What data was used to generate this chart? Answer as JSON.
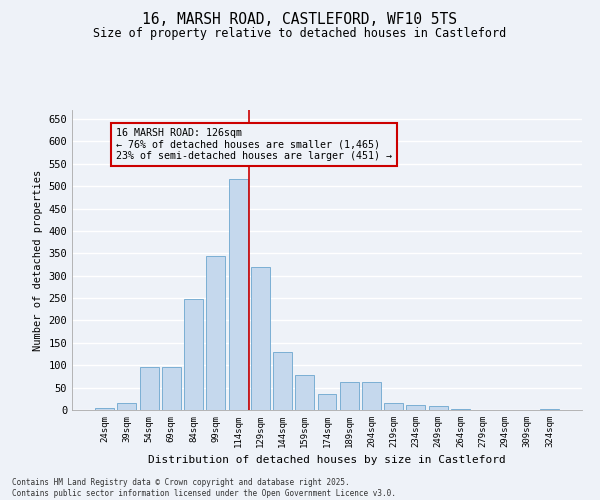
{
  "title_line1": "16, MARSH ROAD, CASTLEFORD, WF10 5TS",
  "title_line2": "Size of property relative to detached houses in Castleford",
  "xlabel": "Distribution of detached houses by size in Castleford",
  "ylabel": "Number of detached properties",
  "categories": [
    "24sqm",
    "39sqm",
    "54sqm",
    "69sqm",
    "84sqm",
    "99sqm",
    "114sqm",
    "129sqm",
    "144sqm",
    "159sqm",
    "174sqm",
    "189sqm",
    "204sqm",
    "219sqm",
    "234sqm",
    "249sqm",
    "264sqm",
    "279sqm",
    "294sqm",
    "309sqm",
    "324sqm"
  ],
  "values": [
    5,
    15,
    97,
    97,
    248,
    345,
    515,
    320,
    130,
    78,
    35,
    63,
    63,
    15,
    12,
    10,
    2,
    1,
    0,
    1,
    2
  ],
  "bar_color": "#c5d8ed",
  "bar_edge_color": "#7bafd4",
  "vline_color": "#cc0000",
  "vline_position": 6.5,
  "property_label": "16 MARSH ROAD: 126sqm",
  "annotation_line1": "← 76% of detached houses are smaller (1,465)",
  "annotation_line2": "23% of semi-detached houses are larger (451) →",
  "annotation_box_color": "#cc0000",
  "annotation_box_bg": "#eef2f8",
  "ylim": [
    0,
    670
  ],
  "yticks": [
    0,
    50,
    100,
    150,
    200,
    250,
    300,
    350,
    400,
    450,
    500,
    550,
    600,
    650
  ],
  "background_color": "#eef2f8",
  "grid_color": "#ffffff",
  "footer_line1": "Contains HM Land Registry data © Crown copyright and database right 2025.",
  "footer_line2": "Contains public sector information licensed under the Open Government Licence v3.0."
}
